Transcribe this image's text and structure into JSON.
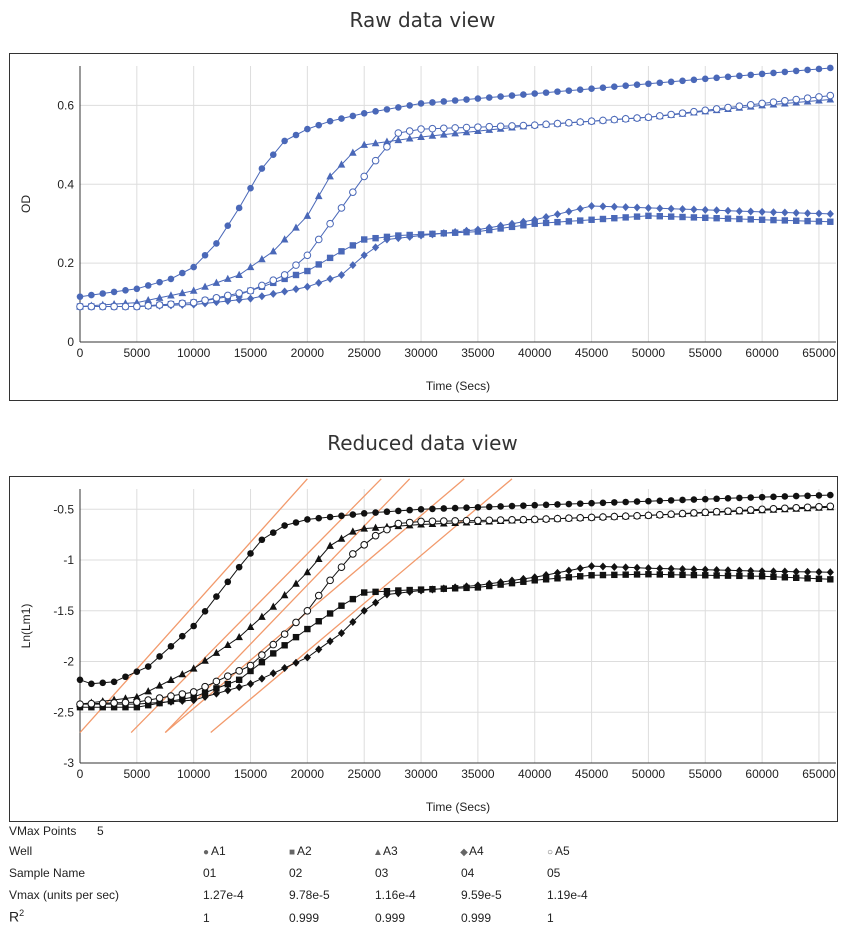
{
  "titles": {
    "raw": "Raw data view",
    "reduced": "Reduced data view"
  },
  "colors": {
    "raw_series": "#4a68b8",
    "reduced_series": "#111111",
    "fit_line": "#f29a6c",
    "grid": "#dddddd"
  },
  "chart_data": [
    {
      "type": "scatter",
      "title": "Raw data view",
      "xlabel": "Time (Secs)",
      "ylabel": "OD",
      "xlim": [
        0,
        66500
      ],
      "ylim": [
        0,
        0.7
      ],
      "xticks": [
        0,
        5000,
        10000,
        15000,
        20000,
        25000,
        30000,
        35000,
        40000,
        45000,
        50000,
        55000,
        60000,
        65000
      ],
      "yticks": [
        0,
        0.2,
        0.4,
        0.6
      ],
      "ytick_labels": [
        "0",
        "0.2",
        "0.4",
        "0.6"
      ],
      "grid": true,
      "lines": true,
      "series": [
        {
          "marker": "circle",
          "points": [
            [
              0,
              0.115
            ],
            [
              5000,
              0.135
            ],
            [
              8000,
              0.16
            ],
            [
              10000,
              0.19
            ],
            [
              12000,
              0.25
            ],
            [
              14000,
              0.34
            ],
            [
              16000,
              0.44
            ],
            [
              18000,
              0.51
            ],
            [
              20000,
              0.54
            ],
            [
              22000,
              0.56
            ],
            [
              25000,
              0.58
            ],
            [
              30000,
              0.605
            ],
            [
              40000,
              0.63
            ],
            [
              50000,
              0.655
            ],
            [
              60000,
              0.68
            ],
            [
              66000,
              0.695
            ]
          ]
        },
        {
          "marker": "square",
          "points": [
            [
              0,
              0.09
            ],
            [
              5000,
              0.09
            ],
            [
              10000,
              0.1
            ],
            [
              14000,
              0.12
            ],
            [
              17000,
              0.15
            ],
            [
              20000,
              0.18
            ],
            [
              23000,
              0.23
            ],
            [
              25000,
              0.26
            ],
            [
              28000,
              0.27
            ],
            [
              35000,
              0.28
            ],
            [
              40000,
              0.3
            ],
            [
              45000,
              0.31
            ],
            [
              50000,
              0.32
            ],
            [
              60000,
              0.31
            ],
            [
              66000,
              0.305
            ]
          ]
        },
        {
          "marker": "triangle",
          "points": [
            [
              0,
              0.09
            ],
            [
              5000,
              0.1
            ],
            [
              10000,
              0.13
            ],
            [
              14000,
              0.17
            ],
            [
              17000,
              0.23
            ],
            [
              20000,
              0.32
            ],
            [
              22000,
              0.42
            ],
            [
              24000,
              0.48
            ],
            [
              25000,
              0.5
            ],
            [
              30000,
              0.52
            ],
            [
              40000,
              0.55
            ],
            [
              50000,
              0.57
            ],
            [
              60000,
              0.6
            ],
            [
              66000,
              0.615
            ]
          ]
        },
        {
          "marker": "diamond",
          "points": [
            [
              0,
              0.09
            ],
            [
              5000,
              0.09
            ],
            [
              10000,
              0.095
            ],
            [
              15000,
              0.11
            ],
            [
              20000,
              0.14
            ],
            [
              23000,
              0.17
            ],
            [
              25000,
              0.22
            ],
            [
              27000,
              0.26
            ],
            [
              30000,
              0.27
            ],
            [
              35000,
              0.285
            ],
            [
              40000,
              0.31
            ],
            [
              45000,
              0.345
            ],
            [
              50000,
              0.34
            ],
            [
              60000,
              0.33
            ],
            [
              66000,
              0.325
            ]
          ]
        },
        {
          "marker": "open-circle",
          "points": [
            [
              0,
              0.09
            ],
            [
              5000,
              0.09
            ],
            [
              10000,
              0.1
            ],
            [
              15000,
              0.13
            ],
            [
              18000,
              0.17
            ],
            [
              20000,
              0.22
            ],
            [
              22000,
              0.3
            ],
            [
              24000,
              0.38
            ],
            [
              26000,
              0.46
            ],
            [
              28000,
              0.53
            ],
            [
              30000,
              0.54
            ],
            [
              40000,
              0.55
            ],
            [
              50000,
              0.57
            ],
            [
              60000,
              0.605
            ],
            [
              66000,
              0.625
            ]
          ]
        }
      ]
    },
    {
      "type": "scatter",
      "title": "Reduced data view",
      "xlabel": "Time (Secs)",
      "ylabel": "Ln(Lm1)",
      "xlim": [
        0,
        66500
      ],
      "ylim": [
        -3,
        -0.3
      ],
      "xticks": [
        0,
        5000,
        10000,
        15000,
        20000,
        25000,
        30000,
        35000,
        40000,
        45000,
        50000,
        55000,
        60000,
        65000
      ],
      "yticks": [
        -3,
        -2.5,
        -2,
        -1.5,
        -1,
        -0.5
      ],
      "ytick_labels": [
        "-3",
        "-2.5",
        "-2",
        "-1.5",
        "-1",
        "-0.5"
      ],
      "grid": true,
      "lines": true,
      "series": [
        {
          "marker": "circle",
          "points": [
            [
              0,
              -2.18
            ],
            [
              1000,
              -2.22
            ],
            [
              3000,
              -2.2
            ],
            [
              6000,
              -2.05
            ],
            [
              10000,
              -1.65
            ],
            [
              14000,
              -1.07
            ],
            [
              16000,
              -0.8
            ],
            [
              18000,
              -0.66
            ],
            [
              20000,
              -0.6
            ],
            [
              25000,
              -0.54
            ],
            [
              30000,
              -0.5
            ],
            [
              40000,
              -0.46
            ],
            [
              50000,
              -0.42
            ],
            [
              60000,
              -0.38
            ],
            [
              66000,
              -0.36
            ]
          ]
        },
        {
          "marker": "square",
          "points": [
            [
              0,
              -2.45
            ],
            [
              5000,
              -2.45
            ],
            [
              10000,
              -2.35
            ],
            [
              14000,
              -2.18
            ],
            [
              17000,
              -1.92
            ],
            [
              20000,
              -1.68
            ],
            [
              23000,
              -1.45
            ],
            [
              25000,
              -1.32
            ],
            [
              28000,
              -1.3
            ],
            [
              35000,
              -1.27
            ],
            [
              40000,
              -1.2
            ],
            [
              45000,
              -1.15
            ],
            [
              50000,
              -1.14
            ],
            [
              60000,
              -1.16
            ],
            [
              66000,
              -1.19
            ]
          ]
        },
        {
          "marker": "triangle",
          "points": [
            [
              0,
              -2.42
            ],
            [
              5000,
              -2.35
            ],
            [
              10000,
              -2.07
            ],
            [
              14000,
              -1.76
            ],
            [
              17000,
              -1.46
            ],
            [
              20000,
              -1.12
            ],
            [
              22000,
              -0.86
            ],
            [
              24000,
              -0.72
            ],
            [
              25000,
              -0.69
            ],
            [
              30000,
              -0.65
            ],
            [
              40000,
              -0.6
            ],
            [
              50000,
              -0.56
            ],
            [
              60000,
              -0.51
            ],
            [
              66000,
              -0.48
            ]
          ]
        },
        {
          "marker": "diamond",
          "points": [
            [
              0,
              -2.42
            ],
            [
              5000,
              -2.42
            ],
            [
              10000,
              -2.38
            ],
            [
              15000,
              -2.22
            ],
            [
              20000,
              -1.96
            ],
            [
              23000,
              -1.72
            ],
            [
              25000,
              -1.5
            ],
            [
              27000,
              -1.34
            ],
            [
              30000,
              -1.3
            ],
            [
              35000,
              -1.25
            ],
            [
              40000,
              -1.17
            ],
            [
              45000,
              -1.06
            ],
            [
              50000,
              -1.08
            ],
            [
              60000,
              -1.11
            ],
            [
              66000,
              -1.12
            ]
          ]
        },
        {
          "marker": "open-circle",
          "points": [
            [
              0,
              -2.42
            ],
            [
              5000,
              -2.4
            ],
            [
              10000,
              -2.3
            ],
            [
              15000,
              -2.04
            ],
            [
              18000,
              -1.73
            ],
            [
              20000,
              -1.5
            ],
            [
              22000,
              -1.2
            ],
            [
              24000,
              -0.94
            ],
            [
              26000,
              -0.76
            ],
            [
              28000,
              -0.64
            ],
            [
              30000,
              -0.62
            ],
            [
              40000,
              -0.6
            ],
            [
              50000,
              -0.56
            ],
            [
              60000,
              -0.5
            ],
            [
              66000,
              -0.47
            ]
          ]
        }
      ],
      "fit_lines": [
        [
          [
            0,
            -2.7
          ],
          [
            20000,
            -0.2
          ]
        ],
        [
          [
            4500,
            -2.7
          ],
          [
            26500,
            -0.2
          ]
        ],
        [
          [
            7500,
            -2.7
          ],
          [
            29000,
            -0.2
          ]
        ],
        [
          [
            7500,
            -2.7
          ],
          [
            33800,
            -0.2
          ]
        ],
        [
          [
            11500,
            -2.7
          ],
          [
            38000,
            -0.2
          ]
        ]
      ]
    }
  ],
  "vmax_table": {
    "vmax_points_label": "VMax Points",
    "vmax_points_value": "5",
    "well_label": "Well",
    "sample_name_label": "Sample Name",
    "vmax_label": "Vmax (units per sec)",
    "r2_label": "R",
    "r2_sup": "2",
    "columns": [
      {
        "symbol": "●",
        "well": "A1",
        "sample": "01",
        "vmax": "1.27e-4",
        "r2": "1"
      },
      {
        "symbol": "■",
        "well": "A2",
        "sample": "02",
        "vmax": "9.78e-5",
        "r2": "0.999"
      },
      {
        "symbol": "▲",
        "well": "A3",
        "sample": "03",
        "vmax": "1.16e-4",
        "r2": "0.999"
      },
      {
        "symbol": "◆",
        "well": "A4",
        "sample": "04",
        "vmax": "9.59e-5",
        "r2": "0.999"
      },
      {
        "symbol": "○",
        "well": "A5",
        "sample": "05",
        "vmax": "1.19e-4",
        "r2": "1"
      }
    ]
  }
}
